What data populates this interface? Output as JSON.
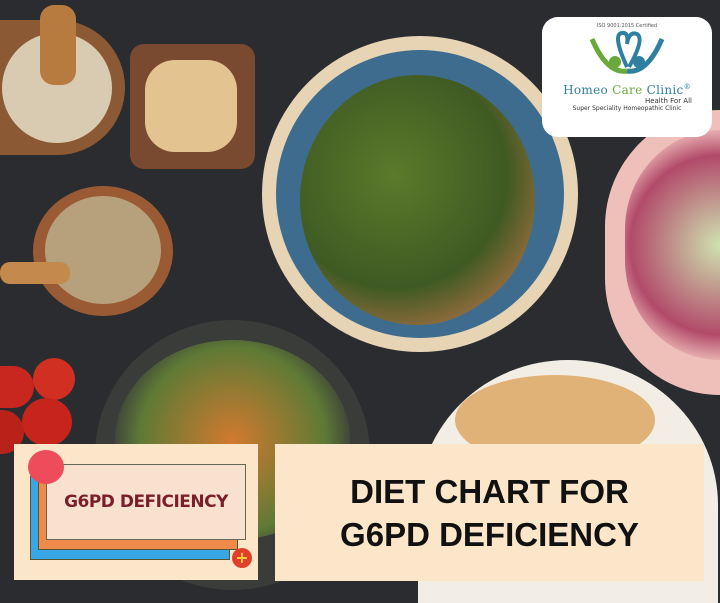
{
  "logo": {
    "certification": "ISO 9001:2015 Certified",
    "name_part1": "Homeo ",
    "name_part2": "Care",
    "name_part3": " Clinic",
    "registered": "®",
    "tagline": "Health For All",
    "subtitle": "Super Speciality Homeopathic Clinic",
    "colors": {
      "blue": "#2f7fa0",
      "green": "#6aa83a"
    }
  },
  "badge": {
    "label": "G6PD DEFICIENCY",
    "colors": {
      "text": "#7a1e2c",
      "orange": "#ef8a4b",
      "blue": "#39a6e6",
      "bg": "#fbe6c9"
    }
  },
  "title": {
    "line1": "DIET CHART FOR",
    "line2": "G6PD DEFICIENCY"
  },
  "background_color": "#2a2c2f"
}
